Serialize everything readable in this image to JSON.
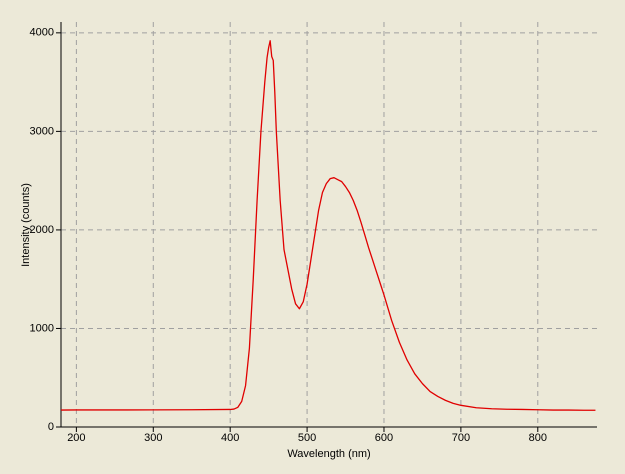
{
  "chart_data": {
    "type": "line",
    "xlabel": "Wavelength (nm)",
    "ylabel": "Intensity (counts)",
    "color": "#e00000",
    "x": [
      180,
      200,
      250,
      300,
      350,
      400,
      405,
      410,
      415,
      420,
      425,
      430,
      435,
      440,
      445,
      448,
      450,
      452,
      454,
      456,
      458,
      460,
      465,
      470,
      475,
      480,
      485,
      490,
      495,
      500,
      505,
      510,
      515,
      520,
      525,
      530,
      535,
      540,
      545,
      550,
      555,
      560,
      565,
      570,
      575,
      580,
      585,
      590,
      595,
      600,
      610,
      620,
      630,
      640,
      650,
      660,
      670,
      680,
      690,
      700,
      720,
      740,
      760,
      780,
      800,
      820,
      840,
      860,
      875
    ],
    "values": [
      172,
      173,
      173,
      174,
      175,
      178,
      182,
      200,
      260,
      420,
      800,
      1500,
      2300,
      3000,
      3500,
      3750,
      3850,
      3920,
      3760,
      3720,
      3400,
      3000,
      2300,
      1800,
      1600,
      1400,
      1250,
      1200,
      1270,
      1450,
      1700,
      1950,
      2200,
      2380,
      2470,
      2520,
      2530,
      2510,
      2490,
      2440,
      2380,
      2300,
      2200,
      2080,
      1950,
      1820,
      1700,
      1580,
      1460,
      1340,
      1080,
      860,
      680,
      540,
      440,
      360,
      310,
      270,
      240,
      220,
      195,
      185,
      180,
      178,
      175,
      172,
      172,
      170,
      170
    ],
    "xlim": [
      180,
      877
    ],
    "ylim": [
      0,
      4110
    ],
    "xticks": [
      200,
      300,
      400,
      500,
      600,
      700,
      800
    ],
    "yticks": [
      0,
      1000,
      2000,
      3000,
      4000
    ],
    "grid": true
  }
}
